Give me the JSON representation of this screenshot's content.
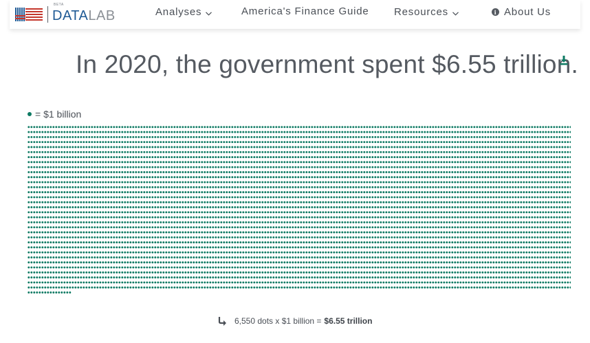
{
  "brand": {
    "beta": "BETA",
    "data_word": "DATA",
    "lab_word": "LAB"
  },
  "nav": {
    "analyses": "Analyses",
    "finance_guide": "America's Finance Guide",
    "resources": "Resources",
    "about": "About Us"
  },
  "headline": "In 2020, the government spent $6.55 trillion.",
  "legend": {
    "label": "= $1 billion"
  },
  "footer": {
    "prefix": "6,550 dots x $1 billion =",
    "total": "$6.55 trillion"
  },
  "colors": {
    "dot": "#0e7a63",
    "brand_blue": "#1f5a95",
    "brand_red": "#c4362c",
    "text": "#555a61"
  },
  "icons": {
    "download": "download-icon",
    "info": "info-icon",
    "arrow": "curved-arrow-icon",
    "chevron": "chevron-down-icon"
  },
  "chart_data": {
    "type": "dot-matrix",
    "dots": 6550,
    "unit_value": 1,
    "unit_label": "$1 billion",
    "total": 6550,
    "total_label": "$6.55 trillion"
  }
}
